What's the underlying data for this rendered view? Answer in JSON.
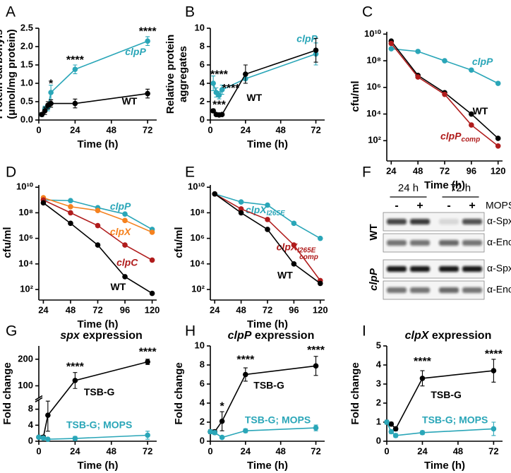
{
  "chart_data": [
    {
      "type": "line",
      "panel": "A",
      "ylabel": [
        "Protein carbonyls",
        "(μmol/mg protein)"
      ],
      "xlabel": "Time (h)",
      "xlim": [
        0,
        78
      ],
      "xticks": [
        0,
        24,
        48,
        72
      ],
      "ylim": [
        0,
        2.5
      ],
      "yticks": [
        {
          "value": 0,
          "label": "0.0"
        },
        0.5,
        {
          "value": 1,
          "label": "1.0"
        },
        1.5,
        {
          "value": 2,
          "label": "2.0"
        },
        2.5
      ],
      "series": [
        {
          "name": "clpP",
          "italic": true,
          "color": "#2aa6b8",
          "x": [
            2,
            4,
            6,
            8,
            24,
            72
          ],
          "values": [
            0.15,
            0.3,
            0.35,
            0.75,
            1.38,
            2.15
          ],
          "errors": [
            0.05,
            0.08,
            0.1,
            0.2,
            0.12,
            0.12
          ],
          "label_pos": [
            64,
            1.85
          ]
        },
        {
          "name": "WT",
          "italic": false,
          "color": "#000000",
          "x": [
            2,
            4,
            6,
            8,
            24,
            72
          ],
          "values": [
            0.15,
            0.25,
            0.4,
            0.45,
            0.45,
            0.72
          ],
          "errors": [
            0.05,
            0.1,
            0.1,
            0.1,
            0.12,
            0.12
          ],
          "label_pos": [
            60,
            0.5
          ]
        }
      ],
      "annotations": [
        {
          "text": "*",
          "x": 8,
          "y": 0.98
        },
        {
          "text": "****",
          "x": 24,
          "y": 1.62
        },
        {
          "text": "****",
          "x": 72,
          "y": 2.4
        }
      ]
    },
    {
      "type": "line",
      "panel": "B",
      "ylabel": [
        "Relative protein",
        "aggregates"
      ],
      "xlabel": "Time (h)",
      "xlim": [
        0,
        78
      ],
      "xticks": [
        0,
        24,
        48,
        72
      ],
      "ylim": [
        0,
        10
      ],
      "yticks": [
        0,
        2,
        4,
        6,
        8,
        10
      ],
      "series": [
        {
          "name": "clpP",
          "italic": true,
          "color": "#2aa6b8",
          "x": [
            2,
            4,
            6,
            8,
            24,
            72
          ],
          "values": [
            4.0,
            3.0,
            2.7,
            3.3,
            4.5,
            7.2
          ],
          "errors": [
            0.8,
            0.5,
            0.4,
            0.5,
            0.5,
            1.2
          ],
          "label_pos": [
            66,
            8.8
          ]
        },
        {
          "name": "WT",
          "italic": false,
          "color": "#000000",
          "x": [
            2,
            4,
            6,
            8,
            24,
            72
          ],
          "values": [
            1.0,
            0.6,
            0.55,
            0.6,
            5.0,
            7.6
          ],
          "errors": [
            0.2,
            0.1,
            0.1,
            0.1,
            1.0,
            1.3
          ],
          "label_pos": [
            30,
            2.4
          ]
        }
      ],
      "annotations": [
        {
          "text": "****",
          "x": 6,
          "y": 4.9
        },
        {
          "text": "****",
          "x": 14,
          "y": 3.4
        },
        {
          "text": "***",
          "x": 6,
          "y": 1.6
        }
      ]
    },
    {
      "type": "line",
      "panel": "C",
      "ylabel": [
        "cfu/ml"
      ],
      "xlabel": "Time (h)",
      "log": true,
      "xlim": [
        20,
        124
      ],
      "xticks": [
        24,
        48,
        72,
        96,
        120
      ],
      "ylim": [
        3,
        15000000000
      ],
      "yticks": [
        {
          "value": 100,
          "label": "10²"
        },
        {
          "value": 10000,
          "label": "10⁴"
        },
        {
          "value": 1000000,
          "label": "10⁶"
        },
        {
          "value": 100000000,
          "label": "10⁸"
        },
        {
          "value": 10000000000,
          "label": "10¹⁰"
        }
      ],
      "series": [
        {
          "name": "clpP",
          "italic": true,
          "color": "#2aa6b8",
          "x": [
            24,
            48,
            72,
            96,
            120
          ],
          "values": [
            800000000,
            500000000,
            100000000,
            20000000,
            2000000
          ],
          "label_pos": [
            106,
            80000000
          ]
        },
        {
          "name": "WT",
          "italic": false,
          "color": "#000000",
          "x": [
            24,
            48,
            72,
            96,
            120
          ],
          "values": [
            3000000000,
            8000000,
            400000,
            10000,
            150
          ],
          "label_pos": [
            104,
            15000
          ]
        },
        {
          "name": "clpP",
          "subscript": "comp",
          "italic": true,
          "color": "#b01c1c",
          "x": [
            24,
            48,
            72,
            96,
            120
          ],
          "values": [
            2000000000,
            6000000,
            300000,
            1500,
            40
          ],
          "label_pos": [
            86,
            200
          ]
        }
      ]
    },
    {
      "type": "line",
      "panel": "D",
      "ylabel": [
        "cfu/ml"
      ],
      "xlabel": "Time (h)",
      "log": true,
      "xlim": [
        20,
        124
      ],
      "xticks": [
        24,
        48,
        72,
        96,
        120
      ],
      "ylim": [
        15,
        15000000000
      ],
      "yticks": [
        {
          "value": 100,
          "label": "10²"
        },
        {
          "value": 10000,
          "label": "10⁴"
        },
        {
          "value": 1000000,
          "label": "10⁶"
        },
        {
          "value": 100000000,
          "label": "10⁸"
        },
        {
          "value": 10000000000,
          "label": "10¹⁰"
        }
      ],
      "series": [
        {
          "name": "clpP",
          "italic": true,
          "color": "#2aa6b8",
          "x": [
            24,
            48,
            72,
            96,
            120
          ],
          "values": [
            1000000000,
            900000000,
            250000000,
            80000000,
            5000000
          ],
          "label_pos": [
            92,
            300000000
          ]
        },
        {
          "name": "clpX",
          "italic": true,
          "color": "#f5821f",
          "x": [
            24,
            48,
            72,
            96,
            120
          ],
          "values": [
            1500000000,
            300000000,
            150000000,
            25000000,
            3000000
          ],
          "label_pos": [
            92,
            3000000
          ]
        },
        {
          "name": "clpC",
          "italic": true,
          "color": "#b01c1c",
          "x": [
            24,
            48,
            72,
            96,
            120
          ],
          "values": [
            1000000000,
            100000000,
            10000000,
            300000,
            20000
          ],
          "label_pos": [
            98,
            12000
          ]
        },
        {
          "name": "WT",
          "italic": false,
          "color": "#000000",
          "x": [
            24,
            48,
            72,
            96,
            120
          ],
          "values": [
            600000000,
            15000000,
            300000,
            1000,
            50
          ],
          "label_pos": [
            90,
            150
          ]
        }
      ]
    },
    {
      "type": "line",
      "panel": "E",
      "ylabel": [
        "cfu/ml"
      ],
      "xlabel": "Time (h)",
      "log": true,
      "xlim": [
        20,
        124
      ],
      "xticks": [
        24,
        48,
        72,
        96,
        120
      ],
      "ylim": [
        15,
        15000000000
      ],
      "yticks": [
        {
          "value": 100,
          "label": "10²"
        },
        {
          "value": 10000,
          "label": "10⁴"
        },
        {
          "value": 1000000,
          "label": "10⁶"
        },
        {
          "value": 100000000,
          "label": "10⁸"
        },
        {
          "value": 10000000000,
          "label": "10¹⁰"
        }
      ],
      "series": [
        {
          "name": "clpX",
          "subscript": "I265E",
          "italic": true,
          "color": "#2aa6b8",
          "x": [
            24,
            48,
            72,
            96,
            120
          ],
          "values": [
            3000000000,
            700000000,
            400000000,
            15000000,
            1000000
          ],
          "label_pos": [
            70,
            150000000
          ]
        },
        {
          "name": "clpX",
          "subscript": "I265E",
          "subscript2": "comp",
          "italic": true,
          "color": "#b01c1c",
          "x": [
            24,
            48,
            72,
            96,
            120
          ],
          "values": [
            3000000000,
            200000000,
            30000000,
            300000,
            500
          ],
          "label_pos": [
            98,
            200000
          ]
        },
        {
          "name": "WT",
          "italic": false,
          "color": "#000000",
          "x": [
            24,
            48,
            72,
            96,
            120
          ],
          "values": [
            3000000000,
            100000000,
            5000000,
            10000,
            300
          ],
          "label_pos": [
            88,
            1200
          ]
        }
      ]
    },
    {
      "type": "blot",
      "panel": "F",
      "time_labels": [
        "24 h",
        "72 h"
      ],
      "condition_label": "MOPS",
      "lanes": [
        "-",
        "+",
        "-",
        "+"
      ],
      "strains": [
        "WT",
        "clpP"
      ],
      "antibodies": [
        "α-Spx",
        "α-Eno"
      ]
    },
    {
      "type": "line",
      "panel": "G",
      "title": "spx expression",
      "ylabel": [
        "Fold change"
      ],
      "xlabel": "Time (h)",
      "xlim": [
        0,
        78
      ],
      "xticks": [
        0,
        24,
        48,
        72
      ],
      "ylim": [
        0,
        250
      ],
      "ybreak": [
        10,
        60
      ],
      "yticks": [
        0,
        4,
        8,
        100,
        200
      ],
      "series": [
        {
          "name": "TSB-G",
          "italic": false,
          "color": "#000000",
          "x": [
            0,
            3,
            6,
            24,
            72
          ],
          "values": [
            1,
            1,
            6.5,
            120,
            190
          ],
          "errors": [
            0.3,
            0.5,
            4,
            30,
            10
          ],
          "label_pos": [
            40,
            75
          ]
        },
        {
          "name": "TSB-G; MOPS",
          "italic": false,
          "color": "#2aa6b8",
          "x": [
            0,
            3,
            6,
            24,
            72
          ],
          "values": [
            1,
            0.8,
            0.5,
            0.7,
            1.5
          ],
          "errors": [
            0.3,
            0.3,
            0.2,
            0.5,
            1.0
          ],
          "label_pos": [
            40,
            4
          ]
        }
      ],
      "annotations": [
        {
          "text": "****",
          "x": 24,
          "y": 170
        },
        {
          "text": "****",
          "x": 72,
          "y": 225
        }
      ]
    },
    {
      "type": "line",
      "panel": "H",
      "title": "clpP expression",
      "ylabel": [
        "Fold change"
      ],
      "xlabel": "Time (h)",
      "xlim": [
        0,
        78
      ],
      "xticks": [
        0,
        24,
        48,
        72
      ],
      "ylim": [
        0,
        10
      ],
      "yticks": [
        0,
        2,
        4,
        6,
        8,
        10
      ],
      "series": [
        {
          "name": "TSB-G",
          "italic": false,
          "color": "#000000",
          "x": [
            0,
            3,
            8,
            24,
            72
          ],
          "values": [
            1,
            1,
            2.1,
            7.0,
            7.9
          ],
          "errors": [
            0.2,
            0.2,
            1.0,
            0.7,
            1.0
          ],
          "label_pos": [
            40,
            5.8
          ]
        },
        {
          "name": "TSB-G; MOPS",
          "italic": false,
          "color": "#2aa6b8",
          "x": [
            0,
            3,
            8,
            24,
            72
          ],
          "values": [
            1,
            0.9,
            0.4,
            1.1,
            1.4
          ],
          "errors": [
            0.2,
            0.2,
            0.1,
            0.2,
            0.3
          ],
          "label_pos": [
            46,
            2.2
          ]
        }
      ],
      "annotations": [
        {
          "text": "*",
          "x": 8,
          "y": 3.6
        },
        {
          "text": "****",
          "x": 24,
          "y": 8.5
        },
        {
          "text": "****",
          "x": 72,
          "y": 9.5
        }
      ]
    },
    {
      "type": "line",
      "panel": "I",
      "title": "clpX expression",
      "ylabel": [
        "Fold change"
      ],
      "xlabel": "Time (h)",
      "xlim": [
        0,
        78
      ],
      "xticks": [
        0,
        24,
        48,
        72
      ],
      "ylim": [
        0,
        5
      ],
      "yticks": [
        0,
        1,
        2,
        3,
        4,
        5
      ],
      "series": [
        {
          "name": "TSB-G",
          "italic": false,
          "color": "#000000",
          "x": [
            0,
            3,
            6,
            24,
            72
          ],
          "values": [
            1,
            0.9,
            0.65,
            3.3,
            3.7
          ],
          "errors": [
            0.1,
            0.1,
            0.1,
            0.4,
            0.6
          ],
          "label_pos": [
            40,
            2.4
          ]
        },
        {
          "name": "TSB-G; MOPS",
          "italic": false,
          "color": "#2aa6b8",
          "x": [
            0,
            3,
            6,
            24,
            72
          ],
          "values": [
            1,
            0.5,
            0.3,
            0.45,
            0.65
          ],
          "errors": [
            0.1,
            0.1,
            0.1,
            0.1,
            0.35
          ],
          "label_pos": [
            46,
            1.1
          ]
        }
      ],
      "annotations": [
        {
          "text": "****",
          "x": 24,
          "y": 4.15
        },
        {
          "text": "****",
          "x": 72,
          "y": 4.55
        }
      ]
    }
  ]
}
